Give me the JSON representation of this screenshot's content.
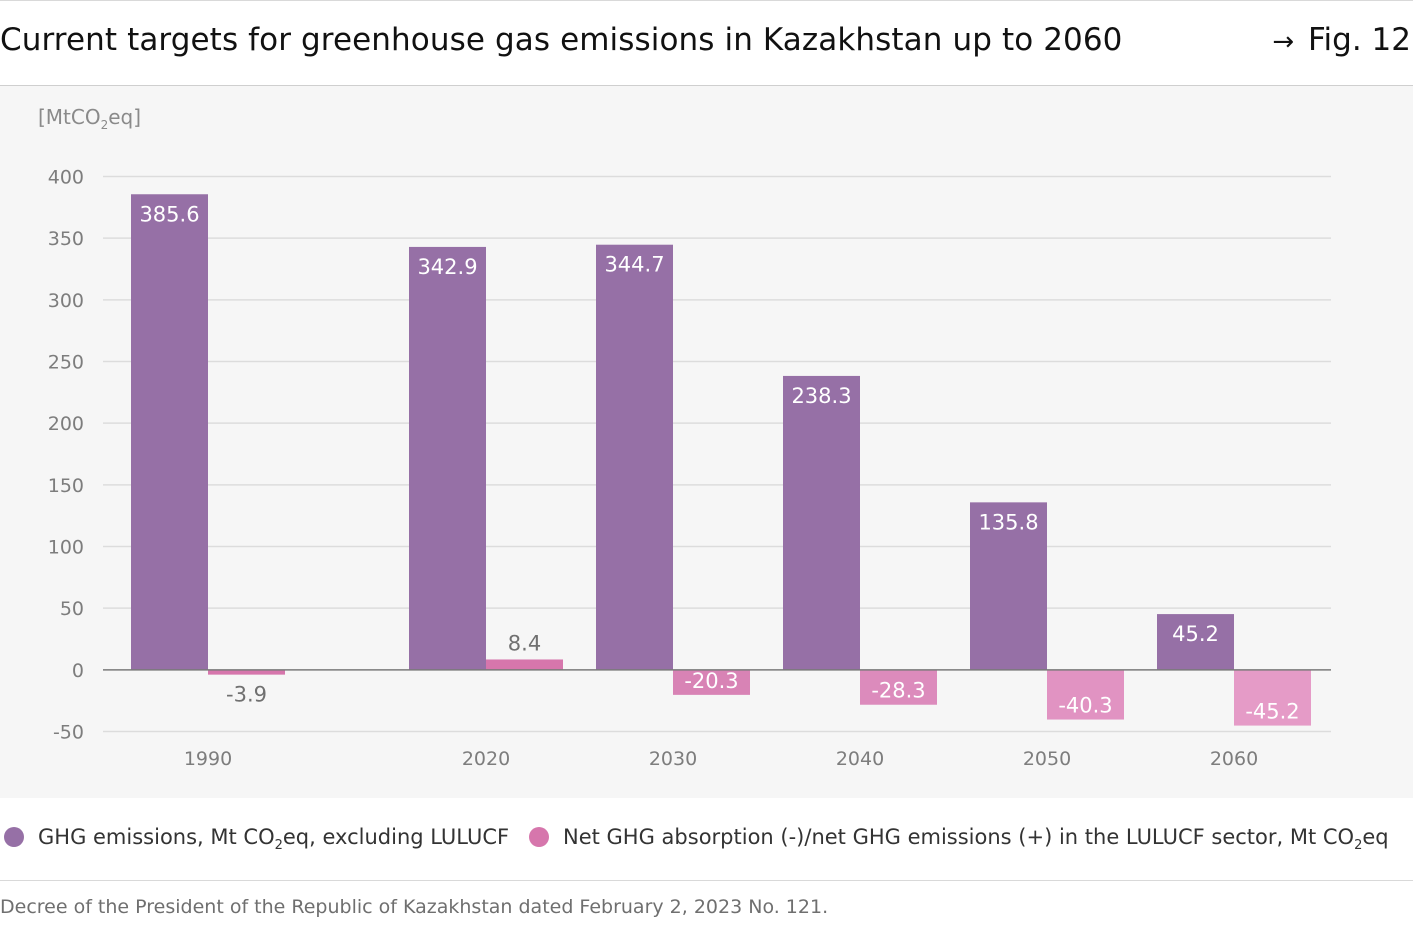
{
  "header": {
    "title": "Current targets for greenhouse gas emissions in Kazakhstan up to 2060",
    "figure_ref": "Fig. 12",
    "figure_arrow": "→"
  },
  "unit_label": {
    "prefix": "[MtCO",
    "sub": "2",
    "suffix": "eq]"
  },
  "chart_data": {
    "type": "bar",
    "categories": [
      "1990",
      "2020",
      "2030",
      "2040",
      "2050",
      "2060"
    ],
    "series": [
      {
        "name": "GHG emissions, Mt CO2eq, excluding LULUCF",
        "color": "#9670a6",
        "values": [
          385.6,
          342.9,
          344.7,
          238.3,
          135.8,
          45.2
        ],
        "labels": [
          "385.6",
          "342.9",
          "344.7",
          "238.3",
          "135.8",
          "45.2"
        ]
      },
      {
        "name": "Net GHG absorption (-)/net GHG emissions (+) in the LULUCF sector, Mt CO2eq",
        "colors": [
          "#d676ac",
          "#d676ac",
          "#d883b5",
          "#dc8bbc",
          "#e193c2",
          "#e59bc7"
        ],
        "values": [
          -3.9,
          8.4,
          -20.3,
          -28.3,
          -40.3,
          -45.2
        ],
        "labels": [
          "-3.9",
          "8.4",
          "-20.3",
          "-28.3",
          "-40.3",
          "-45.2"
        ]
      }
    ],
    "yticks": [
      "400",
      "350",
      "300",
      "250",
      "200",
      "150",
      "100",
      "50",
      "0",
      "-50"
    ],
    "ylim": [
      -50,
      400
    ],
    "grid": true,
    "legend": "bottom"
  },
  "legend": {
    "items": [
      {
        "prefix": "GHG emissions, Mt CO",
        "sub": "2",
        "suffix": "eq, excluding LULUCF",
        "color": "#9670a6"
      },
      {
        "prefix": "Net GHG absorption (-)/net GHG emissions (+) in the LULUCF sector, Mt CO",
        "sub": "2",
        "suffix": "eq",
        "color": "#d676ac"
      }
    ]
  },
  "source": "Decree of the President of the Republic of Kazakhstan dated February 2, 2023 No. 121."
}
